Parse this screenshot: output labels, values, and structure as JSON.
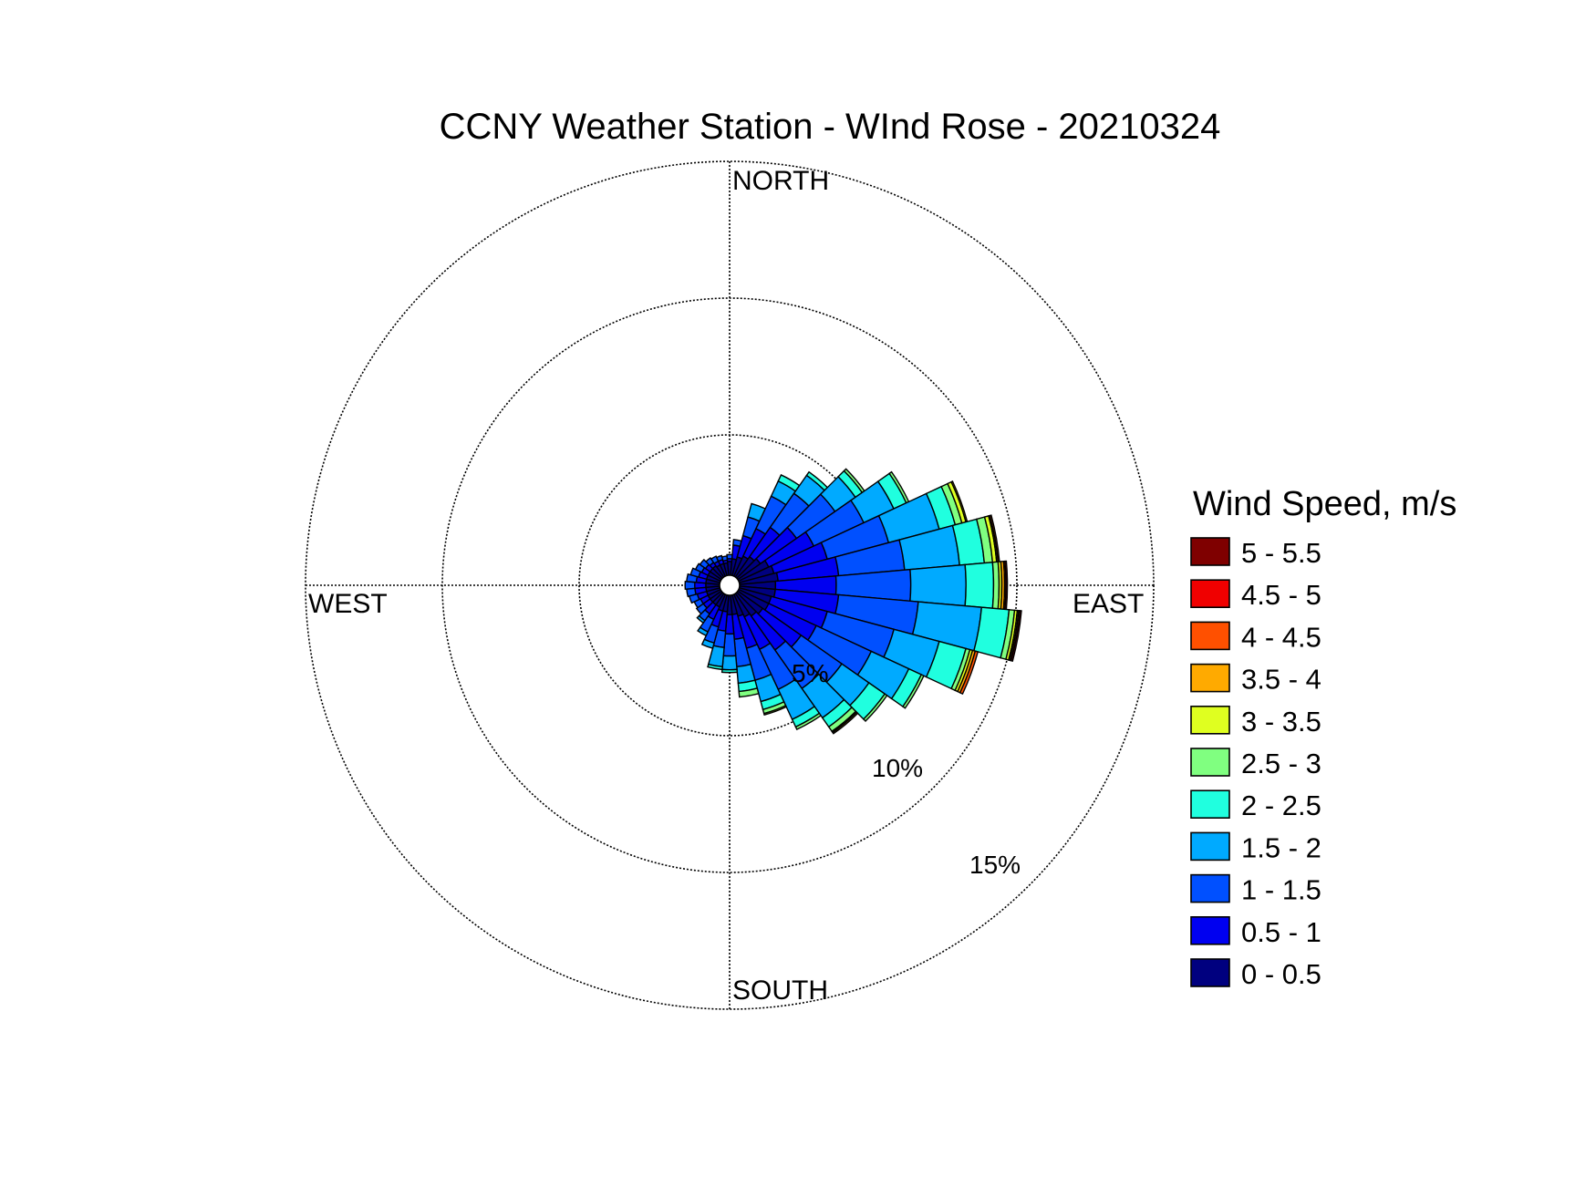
{
  "chart_data": {
    "type": "windrose",
    "title": "CCNY Weather Station - WInd Rose - 20210324",
    "direction_labels": {
      "north": "NORTH",
      "south": "SOUTH",
      "east": "EAST",
      "west": "WEST"
    },
    "radial_rings": [
      5,
      10,
      15
    ],
    "ring_labels": [
      "5%",
      "10%",
      "15%"
    ],
    "radial_max": 15,
    "grid": "dotted",
    "legend_title": "Wind Speed, m/s",
    "legend_position": "right",
    "bins": [
      {
        "label": "0 - 0.5",
        "color": "#00007f"
      },
      {
        "label": "0.5 - 1",
        "color": "#0000f0"
      },
      {
        "label": "1 - 1.5",
        "color": "#0050ff"
      },
      {
        "label": "1.5 - 2",
        "color": "#00aaff"
      },
      {
        "label": "2 - 2.5",
        "color": "#20ffdf"
      },
      {
        "label": "2.5 - 3",
        "color": "#80ff80"
      },
      {
        "label": "3 - 3.5",
        "color": "#dfff20"
      },
      {
        "label": "3.5 - 4",
        "color": "#ffaa00"
      },
      {
        "label": "4 - 4.5",
        "color": "#ff5000"
      },
      {
        "label": "4.5 - 5",
        "color": "#f00000"
      },
      {
        "label": "5 - 5.5",
        "color": "#7f0000"
      }
    ],
    "sector_width_deg": 10,
    "sectors": [
      {
        "dir": 10,
        "cum": [
          0.6,
          1.1,
          1.3
        ]
      },
      {
        "dir": 20,
        "cum": [
          0.7,
          1.5,
          2.2,
          2.7
        ]
      },
      {
        "dir": 30,
        "cum": [
          0.8,
          1.9,
          3.2,
          3.8,
          4.05
        ]
      },
      {
        "dir": 40,
        "cum": [
          0.9,
          2.2,
          3.7,
          4.5,
          4.65
        ]
      },
      {
        "dir": 50,
        "cum": [
          1.0,
          2.6,
          4.3,
          5.2,
          5.5,
          5.6
        ]
      },
      {
        "dir": 60,
        "cum": [
          1.2,
          3.0,
          5.0,
          6.2,
          6.7,
          6.8
        ]
      },
      {
        "dir": 70,
        "cum": [
          1.3,
          3.3,
          5.6,
          7.5,
          8.1,
          8.35,
          8.5,
          8.55
        ]
      },
      {
        "dir": 80,
        "cum": [
          1.4,
          3.6,
          6.0,
          8.0,
          8.9,
          9.2,
          9.35,
          9.4,
          9.45
        ]
      },
      {
        "dir": 90,
        "cum": [
          1.3,
          3.5,
          6.2,
          8.2,
          9.2,
          9.4,
          9.5,
          9.6,
          9.65,
          9.7
        ]
      },
      {
        "dir": 100,
        "cum": [
          1.3,
          3.6,
          6.5,
          8.8,
          9.8,
          10.0,
          10.1,
          10.15,
          10.2,
          10.25
        ]
      },
      {
        "dir": 110,
        "cum": [
          1.2,
          3.3,
          5.8,
          7.5,
          8.5,
          8.65,
          8.75,
          8.85,
          8.95
        ]
      },
      {
        "dir": 120,
        "cum": [
          1.2,
          3.1,
          5.3,
          6.8,
          7.3,
          7.4
        ]
      },
      {
        "dir": 130,
        "cum": [
          1.1,
          2.8,
          4.6,
          5.8,
          6.5,
          6.6
        ]
      },
      {
        "dir": 140,
        "cum": [
          1.0,
          2.5,
          4.2,
          5.5,
          5.9,
          6.1,
          6.15,
          6.2
        ]
      },
      {
        "dir": 150,
        "cum": [
          0.9,
          2.2,
          3.8,
          5.0,
          5.3,
          5.4
        ]
      },
      {
        "dir": 160,
        "cum": [
          0.8,
          2.0,
          3.2,
          4.0,
          4.3,
          4.45,
          4.5
        ]
      },
      {
        "dir": 170,
        "cum": [
          0.7,
          1.6,
          2.6,
          3.2,
          3.5,
          3.7
        ]
      },
      {
        "dir": 180,
        "cum": [
          0.7,
          1.4,
          2.2,
          2.7,
          2.8
        ]
      },
      {
        "dir": 190,
        "cum": [
          0.6,
          1.3,
          1.9,
          2.6,
          2.7
        ]
      },
      {
        "dir": 200,
        "cum": [
          0.6,
          1.2,
          1.8,
          2.0
        ]
      },
      {
        "dir": 210,
        "cum": [
          0.5,
          1.0,
          1.5,
          1.65
        ]
      },
      {
        "dir": 220,
        "cum": [
          0.5,
          0.9,
          1.2,
          1.3
        ]
      },
      {
        "dir": 230,
        "cum": [
          0.5,
          0.8,
          1.1
        ]
      },
      {
        "dir": 240,
        "cum": [
          0.5,
          0.8,
          1.05
        ]
      },
      {
        "dir": 250,
        "cum": [
          0.5,
          0.85,
          1.15
        ]
      },
      {
        "dir": 260,
        "cum": [
          0.5,
          0.9,
          1.2
        ]
      },
      {
        "dir": 270,
        "cum": [
          0.5,
          0.9,
          1.25
        ]
      },
      {
        "dir": 280,
        "cum": [
          0.5,
          0.85,
          1.2
        ]
      },
      {
        "dir": 290,
        "cum": [
          0.5,
          0.8,
          1.1
        ]
      },
      {
        "dir": 300,
        "cum": [
          0.5,
          0.75,
          1.0
        ]
      },
      {
        "dir": 310,
        "cum": [
          0.5,
          0.7,
          0.95
        ]
      },
      {
        "dir": 320,
        "cum": [
          0.5,
          0.65,
          0.85
        ]
      },
      {
        "dir": 330,
        "cum": [
          0.45,
          0.6,
          0.8
        ]
      },
      {
        "dir": 340,
        "cum": [
          0.45,
          0.6,
          0.75
        ]
      },
      {
        "dir": 350,
        "cum": [
          0.45,
          0.55,
          0.7
        ]
      },
      {
        "dir": 0,
        "cum": [
          0.5,
          0.6,
          0.75
        ]
      }
    ]
  }
}
